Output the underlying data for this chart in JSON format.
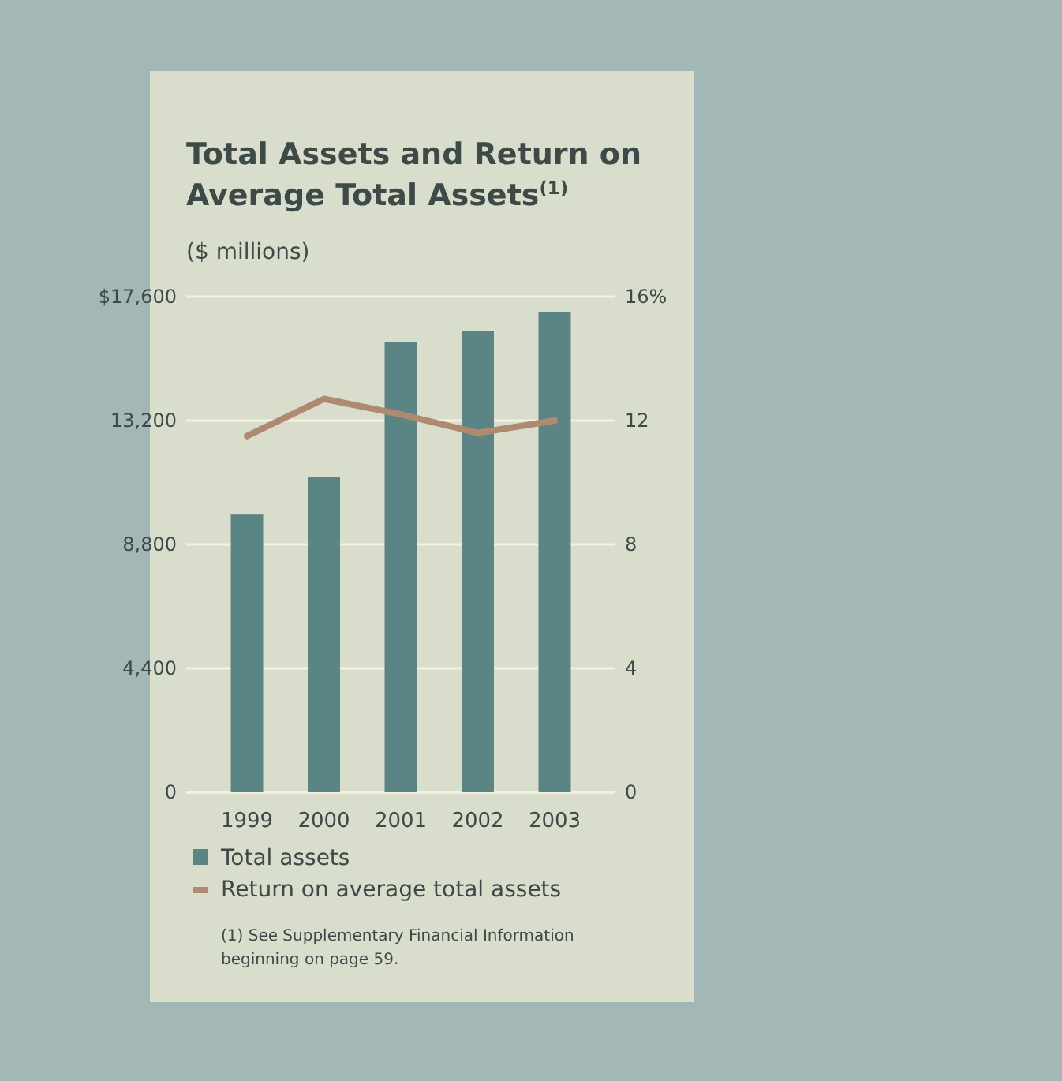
{
  "chart_data": {
    "type": "bar",
    "title": "Total Assets and Return on Average Total Assets$^{(1)}$",
    "subtitle": "($ millions)",
    "categories": [
      "1999",
      "2000",
      "2001",
      "2002",
      "2003"
    ],
    "series": [
      {
        "name": "Total assets",
        "color": "#5b8585",
        "values": [
          9860,
          11210,
          16000,
          16380,
          17040
        ]
      },
      {
        "name": "Return on average total assets",
        "type": "line",
        "axis": "y2",
        "color": "#b08a70",
        "values": [
          11.5,
          12.7,
          12.2,
          11.6,
          12.0
        ]
      }
    ],
    "ylim": [
      0,
      17600
    ],
    "yticks": [
      0,
      {
        "value": 4400,
        "label": "4,400"
      },
      {
        "value": 8800,
        "label": "8,800"
      },
      {
        "value": 13200,
        "label": "13,200"
      },
      {
        "value": 17600,
        "label": "$17,600"
      }
    ],
    "y2lim": [
      0,
      16
    ],
    "y2ticks": [
      0,
      4,
      8,
      12,
      {
        "value": 16,
        "label": "16%"
      }
    ],
    "grid": "y",
    "legend": "bottom",
    "marker": "none",
    "line_style": "solid",
    "annotations": [
      "(1) See Supplementary Financial Information beginning on page 59."
    ]
  }
}
